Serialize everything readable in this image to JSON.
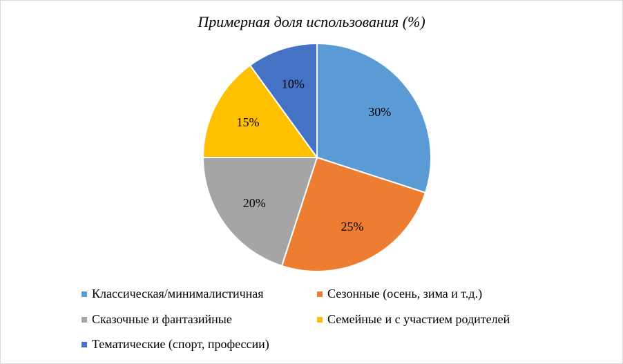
{
  "chart_data": {
    "type": "pie",
    "title": "Примерная доля использования (%)",
    "categories": [
      "Классическая/минималистичная",
      "Сезонные (осень, зима и т.д.)",
      "Сказочные и фантазийные",
      "Семейные и с участием родителей",
      "Тематические (спорт, профессии)"
    ],
    "values": [
      30,
      25,
      20,
      15,
      10
    ],
    "data_labels": [
      "30%",
      "25%",
      "20%",
      "15%",
      "10%"
    ],
    "colors": [
      "#5b9bd5",
      "#ed7d31",
      "#a5a5a5",
      "#ffc000",
      "#4472c4"
    ],
    "legend_position": "bottom"
  }
}
